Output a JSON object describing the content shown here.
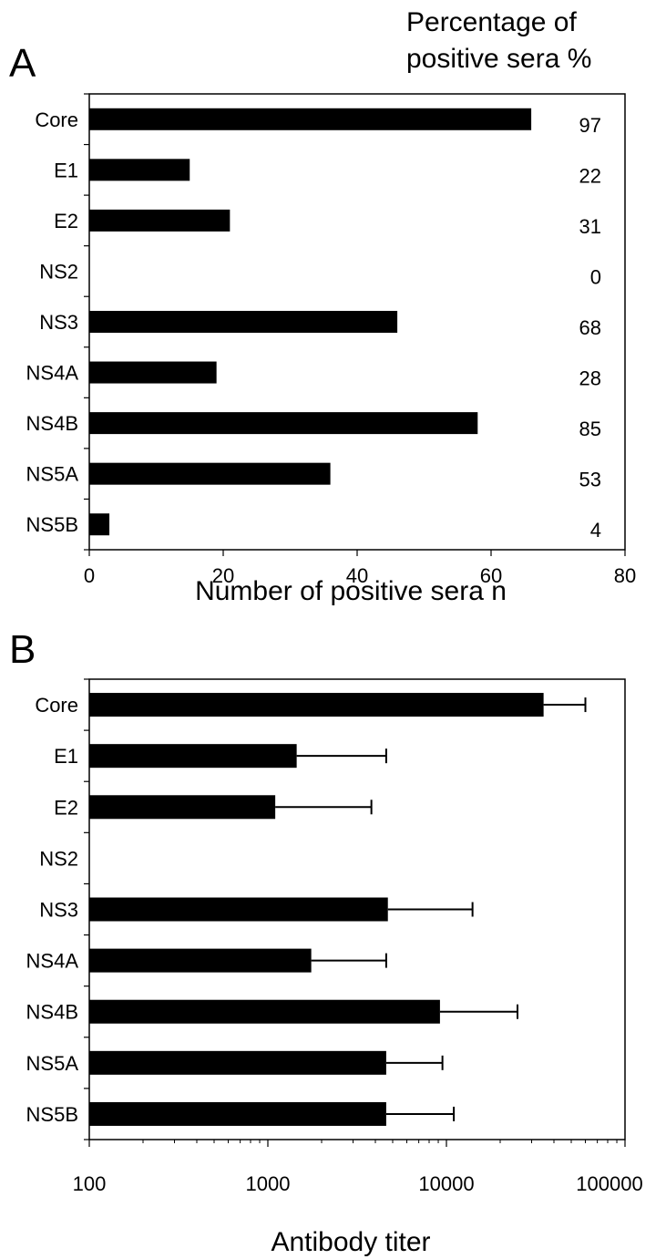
{
  "chart_data": [
    {
      "type": "bar",
      "orientation": "horizontal",
      "panel_label": "A",
      "title": "",
      "xlabel": "Number of positive sera n",
      "ylabel": "",
      "right_header": [
        "Percentage of",
        "positive sera %"
      ],
      "categories": [
        "Core",
        "E1",
        "E2",
        "NS2",
        "NS3",
        "NS4A",
        "NS4B",
        "NS5A",
        "NS5B"
      ],
      "values": [
        66,
        15,
        21,
        0,
        46,
        19,
        58,
        36,
        3
      ],
      "percentages": [
        "97",
        "22",
        "31",
        "0",
        "68",
        "28",
        "85",
        "53",
        "4"
      ],
      "xlim": [
        0,
        80
      ],
      "xticks": [
        "0",
        "20",
        "40",
        "60",
        "80"
      ],
      "xtick_values": [
        0,
        20,
        40,
        60,
        80
      ],
      "bar_color": "#000000",
      "grid": false
    },
    {
      "type": "bar",
      "orientation": "horizontal",
      "panel_label": "B",
      "title": "",
      "xlabel": "Antibody titer",
      "ylabel": "",
      "xscale": "log",
      "categories": [
        "Core",
        "E1",
        "E2",
        "NS2",
        "NS3",
        "NS4A",
        "NS4B",
        "NS5A",
        "NS5B"
      ],
      "values": [
        35000,
        1450,
        1100,
        null,
        4700,
        1750,
        9200,
        4600,
        4600
      ],
      "error_upper": [
        60000,
        4600,
        3800,
        null,
        14000,
        4600,
        25000,
        9500,
        11000
      ],
      "xlim": [
        100,
        100000
      ],
      "xticks": [
        "100",
        "1000",
        "10000",
        "100000"
      ],
      "xtick_values": [
        100,
        1000,
        10000,
        100000
      ],
      "bar_color": "#000000",
      "grid": false
    }
  ]
}
